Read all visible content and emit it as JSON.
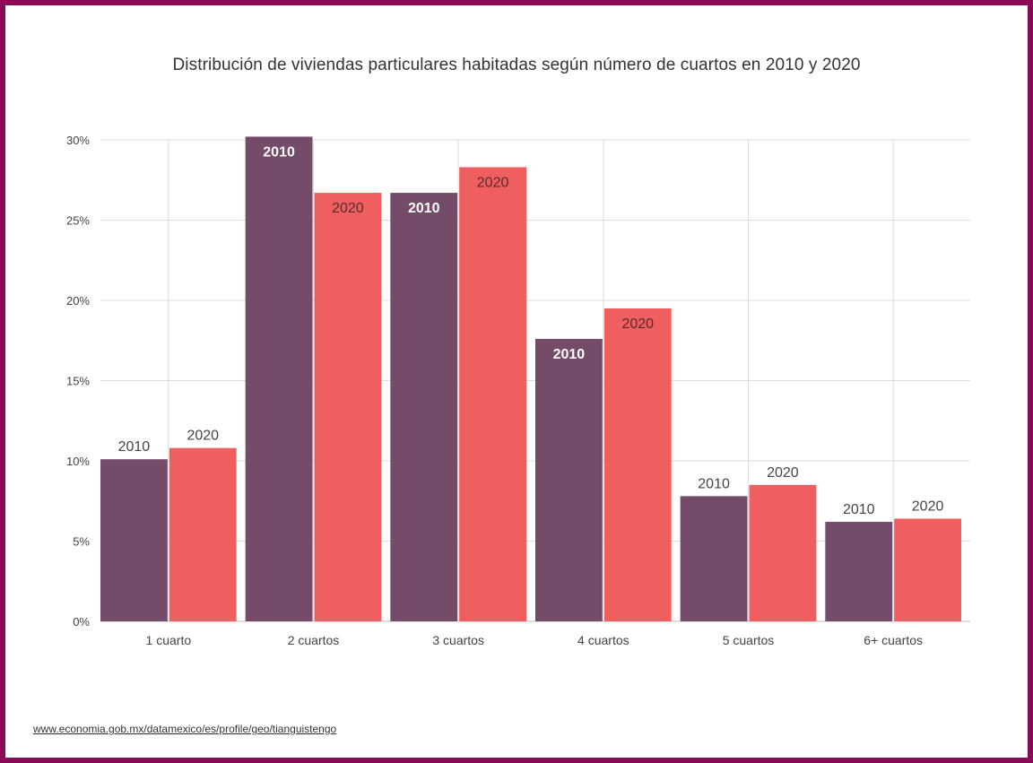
{
  "chart_data": {
    "type": "bar",
    "title": "Distribución de viviendas particulares habitadas según número de cuartos en 2010 y 2020",
    "categories": [
      "1 cuarto",
      "2 cuartos",
      "3 cuartos",
      "4 cuartos",
      "5 cuartos",
      "6+ cuartos"
    ],
    "series": [
      {
        "name": "2010",
        "color": "#744b69",
        "values": [
          10.1,
          30.2,
          26.7,
          17.6,
          7.8,
          6.2
        ]
      },
      {
        "name": "2020",
        "color": "#ef5f5f",
        "values": [
          10.8,
          26.7,
          28.3,
          19.5,
          8.5,
          6.4
        ]
      }
    ],
    "yticks": [
      "0%",
      "5%",
      "10%",
      "15%",
      "20%",
      "25%",
      "30%"
    ],
    "ylim": [
      0,
      30
    ],
    "grid": true,
    "xlabel": "",
    "ylabel": ""
  },
  "source": {
    "url_text": "www.economia.gob.mx/datamexico/es/profile/geo/tianguistengo"
  }
}
